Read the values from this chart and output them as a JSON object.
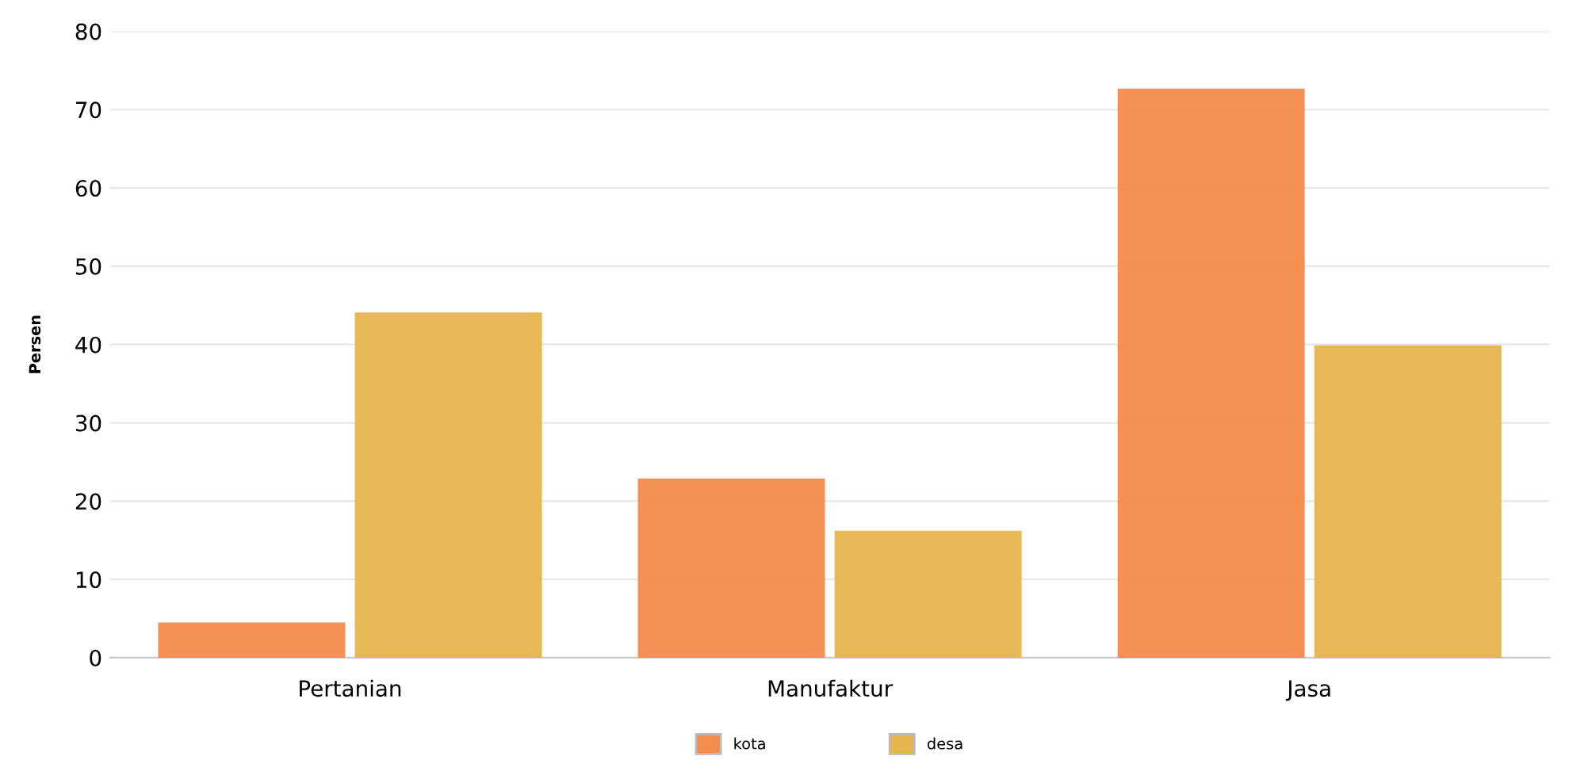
{
  "chart_data": {
    "type": "bar",
    "ylabel": "Persen",
    "categories": [
      "Pertanian",
      "Manufaktur",
      "Jasa"
    ],
    "series": [
      {
        "name": "kota",
        "color": "#f58b4c",
        "values": [
          4.5,
          22.9,
          72.7
        ]
      },
      {
        "name": "desa",
        "color": "#e6b54d",
        "values": [
          44.1,
          16.2,
          39.9
        ]
      }
    ],
    "ylim": [
      0,
      80
    ],
    "yticks": [
      0,
      10,
      20,
      30,
      40,
      50,
      60,
      70,
      80
    ],
    "grid": "y",
    "legend": "bottom"
  }
}
